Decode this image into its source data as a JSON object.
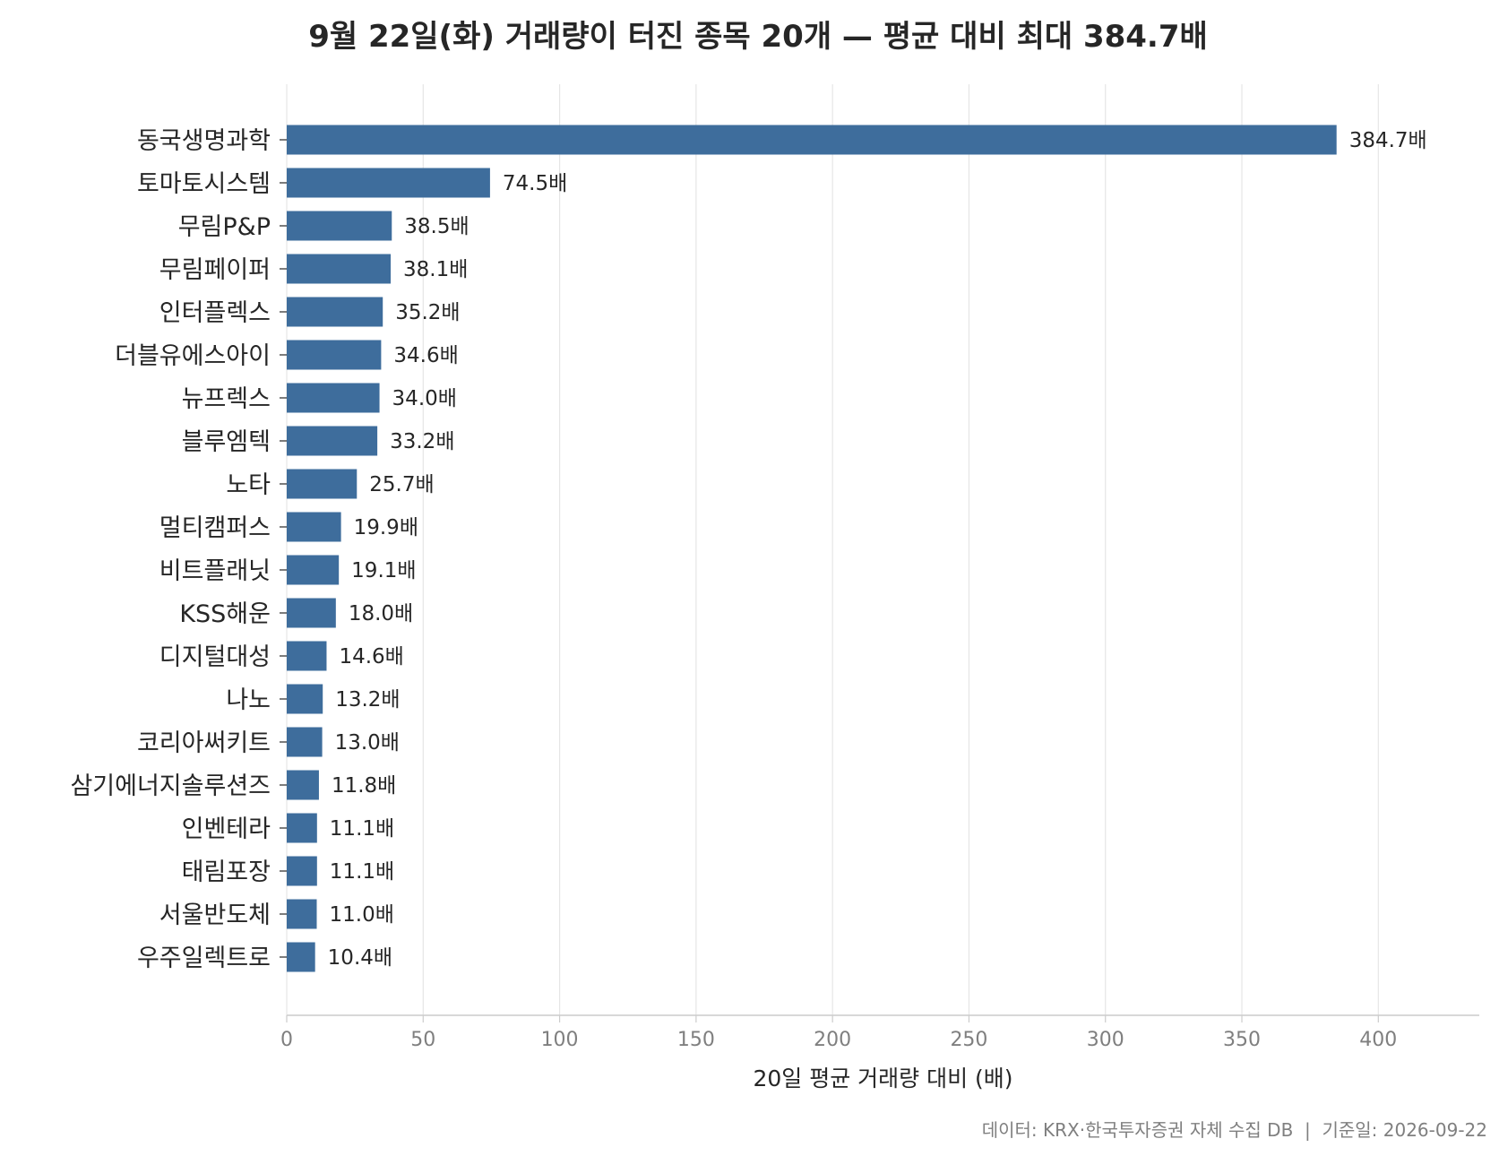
{
  "chart_data": {
    "type": "bar",
    "orientation": "horizontal",
    "title": "9월 22일(화) 거래량이 터진 종목 20개 — 평균 대비 최대 384.7배",
    "xlabel": "20일 평균 거래량 대비 (배)",
    "ylabel": "",
    "xlim": [
      0,
      437
    ],
    "xticks": [
      0,
      50,
      100,
      150,
      200,
      250,
      300,
      350,
      400
    ],
    "grid": "vertical",
    "value_suffix": "배",
    "categories": [
      "동국생명과학",
      "토마토시스템",
      "무림P&P",
      "무림페이퍼",
      "인터플렉스",
      "더블유에스아이",
      "뉴프렉스",
      "블루엠텍",
      "노타",
      "멀티캠퍼스",
      "비트플래닛",
      "KSS해운",
      "디지털대성",
      "나노",
      "코리아써키트",
      "삼기에너지솔루션즈",
      "인벤테라",
      "태림포장",
      "서울반도체",
      "우주일렉트로"
    ],
    "values": [
      384.7,
      74.5,
      38.5,
      38.1,
      35.2,
      34.6,
      34.0,
      33.2,
      25.7,
      19.9,
      19.1,
      18.0,
      14.6,
      13.2,
      13.0,
      11.8,
      11.1,
      11.1,
      11.0,
      10.4
    ],
    "value_labels": [
      "384.7배",
      "74.5배",
      "38.5배",
      "38.1배",
      "35.2배",
      "34.6배",
      "34.0배",
      "33.2배",
      "25.7배",
      "19.9배",
      "19.1배",
      "18.0배",
      "14.6배",
      "13.2배",
      "13.0배",
      "11.8배",
      "11.1배",
      "11.1배",
      "11.0배",
      "10.4배"
    ],
    "bar_color": "#3e6d9c",
    "footer": "데이터: KRX·한국투자증권 자체 수집 DB  |  기준일: 2026-09-22"
  }
}
